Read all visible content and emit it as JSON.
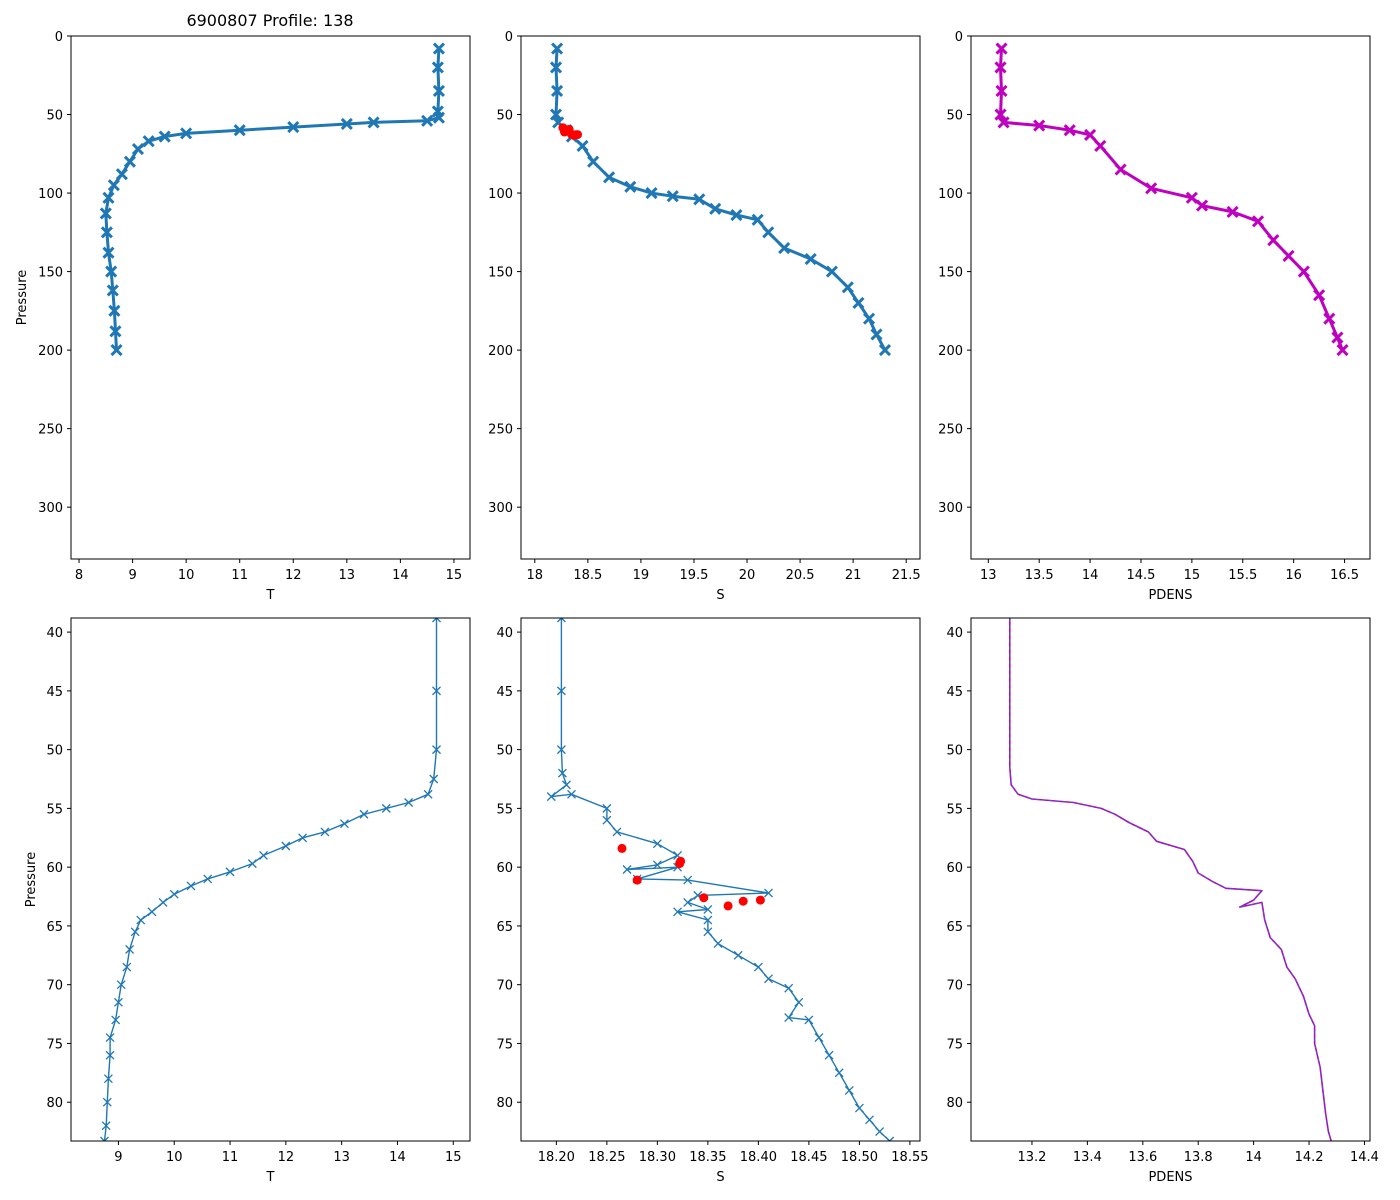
{
  "figure_title": "6900807 Profile: 138",
  "colors": {
    "series": "#1f77b4",
    "density": "#bf00bf",
    "flagged": "#ff0000",
    "frame": "#000000"
  },
  "chart_data": [
    {
      "id": "top-temperature",
      "type": "line",
      "marker": "x",
      "color": "#1f77b4",
      "xlabel": "T",
      "ylabel": "Pressure",
      "title": "6900807 Profile: 138",
      "xlim": [
        7.85,
        15.3
      ],
      "ylim": [
        333,
        0
      ],
      "xticks": [
        8,
        9,
        10,
        11,
        12,
        13,
        14,
        15
      ],
      "yticks": [
        0,
        50,
        100,
        150,
        200,
        250,
        300
      ],
      "series": [
        {
          "name": "T",
          "points": [
            [
              14.72,
              8
            ],
            [
              14.7,
              20
            ],
            [
              14.72,
              35
            ],
            [
              14.7,
              48
            ],
            [
              14.72,
              52
            ],
            [
              14.5,
              54
            ],
            [
              13.5,
              55
            ],
            [
              13.0,
              56
            ],
            [
              12.0,
              58
            ],
            [
              11.0,
              60
            ],
            [
              10.0,
              62
            ],
            [
              9.6,
              64
            ],
            [
              9.3,
              67
            ],
            [
              9.1,
              72
            ],
            [
              8.95,
              80
            ],
            [
              8.8,
              88
            ],
            [
              8.65,
              95
            ],
            [
              8.55,
              103
            ],
            [
              8.5,
              113
            ],
            [
              8.52,
              125
            ],
            [
              8.55,
              138
            ],
            [
              8.6,
              150
            ],
            [
              8.63,
              162
            ],
            [
              8.66,
              175
            ],
            [
              8.68,
              188
            ],
            [
              8.7,
              200
            ]
          ]
        }
      ]
    },
    {
      "id": "top-salinity",
      "type": "line",
      "marker": "x",
      "color": "#1f77b4",
      "xlabel": "S",
      "ylabel": "",
      "xlim": [
        17.87,
        21.63
      ],
      "ylim": [
        333,
        0
      ],
      "xticks": [
        18.0,
        18.5,
        19.0,
        19.5,
        20.0,
        20.5,
        21.0,
        21.5
      ],
      "yticks": [
        0,
        50,
        100,
        150,
        200,
        250,
        300
      ],
      "series": [
        {
          "name": "S",
          "points": [
            [
              18.21,
              8
            ],
            [
              18.2,
              20
            ],
            [
              18.21,
              35
            ],
            [
              18.2,
              50
            ],
            [
              18.22,
              55
            ],
            [
              18.3,
              60
            ],
            [
              18.35,
              64
            ],
            [
              18.45,
              70
            ],
            [
              18.55,
              80
            ],
            [
              18.7,
              90
            ],
            [
              18.9,
              96
            ],
            [
              19.1,
              100
            ],
            [
              19.3,
              102
            ],
            [
              19.55,
              104
            ],
            [
              19.7,
              110
            ],
            [
              19.9,
              114
            ],
            [
              20.1,
              117
            ],
            [
              20.2,
              125
            ],
            [
              20.35,
              135
            ],
            [
              20.6,
              142
            ],
            [
              20.8,
              150
            ],
            [
              20.95,
              160
            ],
            [
              21.05,
              170
            ],
            [
              21.15,
              180
            ],
            [
              21.22,
              190
            ],
            [
              21.3,
              200
            ]
          ]
        }
      ],
      "flagged": {
        "name": "flagged",
        "points": [
          [
            18.265,
            58.4
          ],
          [
            18.323,
            59.5
          ],
          [
            18.322,
            59.7
          ],
          [
            18.28,
            61.1
          ],
          [
            18.346,
            62.6
          ],
          [
            18.37,
            63.3
          ],
          [
            18.385,
            62.9
          ],
          [
            18.402,
            62.8
          ]
        ]
      }
    },
    {
      "id": "top-density",
      "type": "line",
      "marker": "x",
      "color": "#bf00bf",
      "xlabel": "PDENS",
      "ylabel": "",
      "xlim": [
        12.83,
        16.75
      ],
      "ylim": [
        333,
        0
      ],
      "xticks": [
        13.0,
        13.5,
        14.0,
        14.5,
        15.0,
        15.5,
        16.0,
        16.5
      ],
      "yticks": [
        0,
        50,
        100,
        150,
        200,
        250,
        300
      ],
      "series": [
        {
          "name": "PDENS",
          "points": [
            [
              13.13,
              8
            ],
            [
              13.12,
              20
            ],
            [
              13.13,
              35
            ],
            [
              13.12,
              50
            ],
            [
              13.15,
              55
            ],
            [
              13.5,
              57
            ],
            [
              13.8,
              60
            ],
            [
              14.0,
              63
            ],
            [
              14.1,
              70
            ],
            [
              14.3,
              85
            ],
            [
              14.6,
              97
            ],
            [
              15.0,
              103
            ],
            [
              15.1,
              108
            ],
            [
              15.4,
              112
            ],
            [
              15.65,
              118
            ],
            [
              15.8,
              130
            ],
            [
              15.95,
              140
            ],
            [
              16.1,
              150
            ],
            [
              16.25,
              165
            ],
            [
              16.35,
              180
            ],
            [
              16.43,
              192
            ],
            [
              16.48,
              200
            ]
          ]
        }
      ]
    },
    {
      "id": "bottom-temperature",
      "type": "line",
      "marker": "x",
      "color": "#1f77b4",
      "xlabel": "T",
      "ylabel": "Pressure",
      "xlim": [
        8.15,
        15.3
      ],
      "ylim": [
        83.3,
        38.8
      ],
      "xticks": [
        9,
        10,
        11,
        12,
        13,
        14,
        15
      ],
      "yticks": [
        40,
        45,
        50,
        55,
        60,
        65,
        70,
        75,
        80
      ],
      "series": [
        {
          "name": "T",
          "points": [
            [
              14.7,
              38.8
            ],
            [
              14.7,
              45
            ],
            [
              14.7,
              50
            ],
            [
              14.65,
              52.5
            ],
            [
              14.55,
              53.8
            ],
            [
              14.2,
              54.5
            ],
            [
              13.8,
              55.0
            ],
            [
              13.4,
              55.5
            ],
            [
              13.05,
              56.3
            ],
            [
              12.7,
              57.0
            ],
            [
              12.3,
              57.5
            ],
            [
              12.0,
              58.2
            ],
            [
              11.6,
              59.0
            ],
            [
              11.4,
              59.7
            ],
            [
              11.0,
              60.4
            ],
            [
              10.6,
              61.0
            ],
            [
              10.3,
              61.6
            ],
            [
              10.0,
              62.3
            ],
            [
              9.8,
              63.0
            ],
            [
              9.6,
              63.8
            ],
            [
              9.4,
              64.5
            ],
            [
              9.3,
              65.5
            ],
            [
              9.2,
              67.0
            ],
            [
              9.15,
              68.5
            ],
            [
              9.05,
              70.0
            ],
            [
              9.0,
              71.5
            ],
            [
              8.95,
              73.0
            ],
            [
              8.85,
              74.5
            ],
            [
              8.85,
              76.0
            ],
            [
              8.82,
              78.0
            ],
            [
              8.8,
              80.0
            ],
            [
              8.78,
              82.0
            ],
            [
              8.75,
              83.3
            ]
          ]
        }
      ]
    },
    {
      "id": "bottom-salinity",
      "type": "line",
      "marker": "x",
      "color": "#1f77b4",
      "xlabel": "S",
      "ylabel": "",
      "xlim": [
        18.165,
        18.56
      ],
      "ylim": [
        83.3,
        38.8
      ],
      "xticks": [
        18.2,
        18.25,
        18.3,
        18.35,
        18.4,
        18.45,
        18.5,
        18.55
      ],
      "xtick_labels": [
        "18.20",
        "18.25",
        "18.30",
        "18.35",
        "18.40",
        "18.45",
        "18.50",
        "18.55"
      ],
      "yticks": [
        40,
        45,
        50,
        55,
        60,
        65,
        70,
        75,
        80
      ],
      "series": [
        {
          "name": "S",
          "points": [
            [
              18.205,
              38.8
            ],
            [
              18.205,
              45
            ],
            [
              18.205,
              50
            ],
            [
              18.206,
              52.0
            ],
            [
              18.21,
              53.0
            ],
            [
              18.195,
              54.0
            ],
            [
              18.215,
              53.8
            ],
            [
              18.25,
              55.0
            ],
            [
              18.25,
              56.0
            ],
            [
              18.26,
              57.0
            ],
            [
              18.3,
              58.0
            ],
            [
              18.32,
              59.0
            ],
            [
              18.3,
              59.8
            ],
            [
              18.27,
              60.2
            ],
            [
              18.32,
              60.0
            ],
            [
              18.28,
              61.0
            ],
            [
              18.33,
              61.1
            ],
            [
              18.41,
              62.2
            ],
            [
              18.34,
              62.4
            ],
            [
              18.33,
              63.0
            ],
            [
              18.35,
              63.6
            ],
            [
              18.32,
              63.8
            ],
            [
              18.35,
              64.5
            ],
            [
              18.35,
              65.5
            ],
            [
              18.36,
              66.5
            ],
            [
              18.38,
              67.5
            ],
            [
              18.4,
              68.5
            ],
            [
              18.41,
              69.5
            ],
            [
              18.43,
              70.3
            ],
            [
              18.44,
              71.5
            ],
            [
              18.43,
              72.8
            ],
            [
              18.45,
              73.0
            ],
            [
              18.46,
              74.5
            ],
            [
              18.47,
              76.0
            ],
            [
              18.48,
              77.5
            ],
            [
              18.49,
              79.0
            ],
            [
              18.5,
              80.5
            ],
            [
              18.51,
              81.5
            ],
            [
              18.52,
              82.5
            ],
            [
              18.53,
              83.3
            ]
          ]
        }
      ],
      "flagged": {
        "name": "flagged",
        "points": [
          [
            18.265,
            58.4
          ],
          [
            18.323,
            59.5
          ],
          [
            18.322,
            59.7
          ],
          [
            18.28,
            61.1
          ],
          [
            18.346,
            62.6
          ],
          [
            18.37,
            63.3
          ],
          [
            18.385,
            62.9
          ],
          [
            18.402,
            62.8
          ]
        ]
      }
    },
    {
      "id": "bottom-density",
      "type": "line",
      "marker": "none",
      "color": "#bf00bf",
      "xlabel": "PDENS",
      "ylabel": "",
      "xlim": [
        12.98,
        14.42
      ],
      "ylim": [
        83.3,
        38.8
      ],
      "xticks": [
        13.2,
        13.4,
        13.6,
        13.8,
        14.0,
        14.2,
        14.4
      ],
      "yticks": [
        40,
        45,
        50,
        55,
        60,
        65,
        70,
        75,
        80
      ],
      "series": [
        {
          "name": "PDENS",
          "points": [
            [
              13.12,
              38.8
            ],
            [
              13.12,
              45
            ],
            [
              13.12,
              50
            ],
            [
              13.12,
              51.5
            ],
            [
              13.125,
              53.0
            ],
            [
              13.15,
              53.8
            ],
            [
              13.2,
              54.2
            ],
            [
              13.35,
              54.5
            ],
            [
              13.45,
              55.0
            ],
            [
              13.5,
              55.5
            ],
            [
              13.55,
              56.2
            ],
            [
              13.62,
              57.0
            ],
            [
              13.65,
              57.8
            ],
            [
              13.75,
              58.5
            ],
            [
              13.78,
              59.5
            ],
            [
              13.8,
              60.5
            ],
            [
              13.85,
              61.2
            ],
            [
              13.9,
              61.8
            ],
            [
              14.03,
              62.0
            ],
            [
              14.0,
              62.8
            ],
            [
              13.95,
              63.4
            ],
            [
              14.03,
              63.0
            ],
            [
              14.04,
              64.5
            ],
            [
              14.06,
              66.0
            ],
            [
              14.1,
              67.0
            ],
            [
              14.12,
              68.5
            ],
            [
              14.15,
              69.5
            ],
            [
              14.18,
              71.0
            ],
            [
              14.2,
              72.5
            ],
            [
              14.22,
              73.5
            ],
            [
              14.22,
              75.0
            ],
            [
              14.24,
              77.0
            ],
            [
              14.25,
              79.0
            ],
            [
              14.26,
              81.0
            ],
            [
              14.27,
              82.5
            ],
            [
              14.28,
              83.3
            ]
          ]
        }
      ]
    }
  ]
}
